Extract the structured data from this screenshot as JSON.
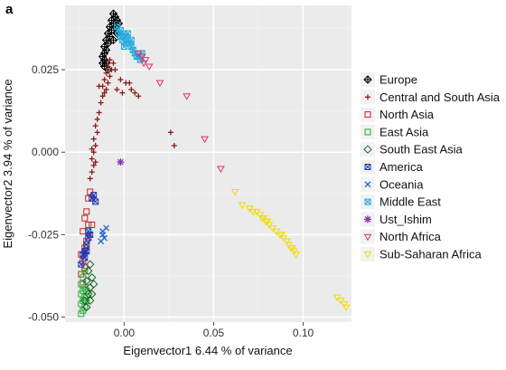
{
  "panel_label": "a",
  "chart_data": {
    "type": "scatter",
    "xlabel": "Eigenvector1 6.44 % of variance",
    "ylabel": "Eigenvector2 3.94 % of variance",
    "xlim": [
      -0.033,
      0.127
    ],
    "ylim": [
      -0.0515,
      0.0445
    ],
    "x_ticks": [
      0.0,
      0.05,
      0.1
    ],
    "x_tick_labels": [
      "0.00",
      "0.05",
      "0.10"
    ],
    "y_ticks": [
      -0.05,
      -0.025,
      0.0,
      0.025
    ],
    "y_tick_labels": [
      "-0.050",
      "-0.025",
      "0.000",
      "0.025"
    ],
    "grid": true,
    "legend_position": "right",
    "series": [
      {
        "name": "Europe",
        "marker": "diamond-plus",
        "color": "#000000",
        "points": [
          [
            -0.006,
            0.042
          ],
          [
            -0.005,
            0.041
          ],
          [
            -0.007,
            0.04
          ],
          [
            -0.006,
            0.039
          ],
          [
            -0.008,
            0.038
          ],
          [
            -0.007,
            0.037
          ],
          [
            -0.009,
            0.036
          ],
          [
            -0.008,
            0.035
          ],
          [
            -0.01,
            0.034
          ],
          [
            -0.009,
            0.033
          ],
          [
            -0.011,
            0.032
          ],
          [
            -0.01,
            0.031
          ],
          [
            -0.011,
            0.03
          ],
          [
            -0.012,
            0.029
          ],
          [
            -0.011,
            0.028
          ],
          [
            -0.012,
            0.027
          ],
          [
            -0.01,
            0.027
          ],
          [
            -0.011,
            0.026
          ],
          [
            -0.009,
            0.025
          ],
          [
            -0.005,
            0.038
          ],
          [
            -0.004,
            0.036
          ],
          [
            -0.006,
            0.034
          ],
          [
            -0.003,
            0.039
          ],
          [
            -0.004,
            0.04
          ]
        ]
      },
      {
        "name": "Central and South Asia",
        "marker": "plus",
        "color": "#8b1a1a",
        "points": [
          [
            -0.008,
            0.028
          ],
          [
            -0.006,
            0.027
          ],
          [
            -0.009,
            0.026
          ],
          [
            -0.007,
            0.025
          ],
          [
            -0.01,
            0.024
          ],
          [
            -0.008,
            0.023
          ],
          [
            -0.011,
            0.022
          ],
          [
            -0.009,
            0.021
          ],
          [
            -0.012,
            0.02
          ],
          [
            -0.01,
            0.019
          ],
          [
            -0.011,
            0.018
          ],
          [
            -0.005,
            0.025
          ],
          [
            -0.002,
            0.022
          ],
          [
            0.001,
            0.021
          ],
          [
            0.004,
            0.019
          ],
          [
            0.003,
            0.021
          ],
          [
            0.006,
            0.018
          ],
          [
            -0.004,
            0.019
          ],
          [
            -0.001,
            0.018
          ],
          [
            0.008,
            0.017
          ],
          [
            0.026,
            0.006
          ],
          [
            0.028,
            0.002
          ],
          [
            -0.013,
            0.015
          ],
          [
            -0.014,
            0.012
          ],
          [
            -0.015,
            0.01
          ],
          [
            -0.016,
            0.008
          ],
          [
            -0.015,
            0.006
          ],
          [
            -0.017,
            0.004
          ],
          [
            -0.016,
            0.002
          ],
          [
            -0.017,
            0.0
          ],
          [
            -0.018,
            -0.002
          ],
          [
            -0.017,
            -0.004
          ],
          [
            -0.018,
            -0.006
          ],
          [
            -0.019,
            -0.008
          ],
          [
            -0.018,
            0.001
          ],
          [
            -0.016,
            -0.003
          ],
          [
            -0.014,
            0.02
          ],
          [
            -0.012,
            0.017
          ]
        ]
      },
      {
        "name": "North Asia",
        "marker": "square",
        "color": "#cc2222",
        "points": [
          [
            -0.019,
            -0.012
          ],
          [
            -0.02,
            -0.014
          ],
          [
            -0.021,
            -0.018
          ],
          [
            -0.022,
            -0.02
          ],
          [
            -0.02,
            -0.022
          ],
          [
            -0.023,
            -0.024
          ],
          [
            -0.021,
            -0.027
          ],
          [
            -0.022,
            -0.029
          ],
          [
            -0.024,
            -0.031
          ],
          [
            -0.023,
            -0.033
          ],
          [
            -0.022,
            -0.035
          ],
          [
            -0.024,
            -0.037
          ],
          [
            -0.023,
            -0.04
          ],
          [
            -0.018,
            -0.022
          ]
        ]
      },
      {
        "name": "East Asia",
        "marker": "square",
        "color": "#22aa33",
        "points": [
          [
            -0.022,
            -0.036
          ],
          [
            -0.023,
            -0.038
          ],
          [
            -0.024,
            -0.04
          ],
          [
            -0.022,
            -0.041
          ],
          [
            -0.023,
            -0.042
          ],
          [
            -0.024,
            -0.043
          ],
          [
            -0.022,
            -0.044
          ],
          [
            -0.023,
            -0.045
          ],
          [
            -0.024,
            -0.046
          ],
          [
            -0.022,
            -0.047
          ],
          [
            -0.023,
            -0.048
          ],
          [
            -0.024,
            -0.049
          ],
          [
            -0.021,
            -0.045
          ],
          [
            -0.021,
            -0.042
          ]
        ]
      },
      {
        "name": "South East Asia",
        "marker": "diamond",
        "color": "#116622",
        "points": [
          [
            -0.019,
            -0.034
          ],
          [
            -0.02,
            -0.036
          ],
          [
            -0.018,
            -0.038
          ],
          [
            -0.021,
            -0.039
          ],
          [
            -0.019,
            -0.041
          ],
          [
            -0.02,
            -0.043
          ],
          [
            -0.022,
            -0.045
          ],
          [
            -0.021,
            -0.047
          ],
          [
            -0.017,
            -0.04
          ],
          [
            -0.018,
            -0.043
          ],
          [
            -0.019,
            -0.045
          ]
        ]
      },
      {
        "name": "America",
        "marker": "square-x",
        "color": "#2233aa",
        "points": [
          [
            -0.017,
            -0.013
          ],
          [
            -0.016,
            -0.015
          ],
          [
            -0.018,
            -0.014
          ],
          [
            -0.019,
            -0.025
          ],
          [
            -0.02,
            -0.026
          ],
          [
            -0.021,
            -0.028
          ],
          [
            -0.022,
            -0.03
          ],
          [
            -0.023,
            -0.031
          ],
          [
            -0.024,
            -0.034
          ],
          [
            -0.022,
            -0.032
          ],
          [
            -0.02,
            -0.024
          ],
          [
            -0.021,
            -0.03
          ]
        ]
      },
      {
        "name": "Oceania",
        "marker": "x",
        "color": "#2266cc",
        "points": [
          [
            -0.012,
            -0.024
          ],
          [
            -0.011,
            -0.026
          ],
          [
            -0.013,
            -0.027
          ],
          [
            -0.01,
            -0.023
          ],
          [
            -0.012,
            -0.025
          ]
        ]
      },
      {
        "name": "Middle East",
        "marker": "square-x",
        "color": "#22aadd",
        "points": [
          [
            -0.004,
            0.038
          ],
          [
            -0.002,
            0.037
          ],
          [
            0.0,
            0.036
          ],
          [
            -0.003,
            0.036
          ],
          [
            0.001,
            0.035
          ],
          [
            -0.001,
            0.034
          ],
          [
            0.002,
            0.034
          ],
          [
            0.003,
            0.033
          ],
          [
            0.001,
            0.033
          ],
          [
            0.004,
            0.032
          ],
          [
            0.005,
            0.031
          ],
          [
            0.006,
            0.03
          ],
          [
            0.007,
            0.029
          ],
          [
            0.008,
            0.029
          ],
          [
            0.009,
            0.028
          ],
          [
            0.01,
            0.03
          ],
          [
            0.002,
            0.036
          ],
          [
            -0.002,
            0.035
          ],
          [
            0.004,
            0.034
          ],
          [
            0.0,
            0.032
          ]
        ]
      },
      {
        "name": "Ust_Ishim",
        "marker": "asterisk",
        "color": "#8833aa",
        "points": [
          [
            -0.002,
            -0.003
          ]
        ]
      },
      {
        "name": "North Africa",
        "marker": "triangle-down",
        "color": "#dd3366",
        "points": [
          [
            0.008,
            0.03
          ],
          [
            0.01,
            0.029
          ],
          [
            0.012,
            0.028
          ],
          [
            0.014,
            0.026
          ],
          [
            0.011,
            0.027
          ],
          [
            0.02,
            0.021
          ],
          [
            0.035,
            0.017
          ],
          [
            0.045,
            0.004
          ],
          [
            0.054,
            -0.005
          ]
        ]
      },
      {
        "name": "Sub-Saharan Africa",
        "marker": "triangle-down",
        "color": "#eedd00",
        "points": [
          [
            0.062,
            -0.012
          ],
          [
            0.066,
            -0.016
          ],
          [
            0.07,
            -0.017
          ],
          [
            0.072,
            -0.018
          ],
          [
            0.074,
            -0.018
          ],
          [
            0.076,
            -0.019
          ],
          [
            0.077,
            -0.02
          ],
          [
            0.078,
            -0.02
          ],
          [
            0.079,
            -0.021
          ],
          [
            0.08,
            -0.021
          ],
          [
            0.081,
            -0.022
          ],
          [
            0.083,
            -0.023
          ],
          [
            0.085,
            -0.024
          ],
          [
            0.087,
            -0.025
          ],
          [
            0.089,
            -0.026
          ],
          [
            0.091,
            -0.027
          ],
          [
            0.092,
            -0.028
          ],
          [
            0.094,
            -0.029
          ],
          [
            0.095,
            -0.03
          ],
          [
            0.096,
            -0.031
          ],
          [
            0.088,
            -0.025
          ],
          [
            0.093,
            -0.029
          ],
          [
            0.119,
            -0.044
          ],
          [
            0.121,
            -0.045
          ],
          [
            0.123,
            -0.046
          ],
          [
            0.124,
            -0.047
          ]
        ]
      }
    ]
  }
}
